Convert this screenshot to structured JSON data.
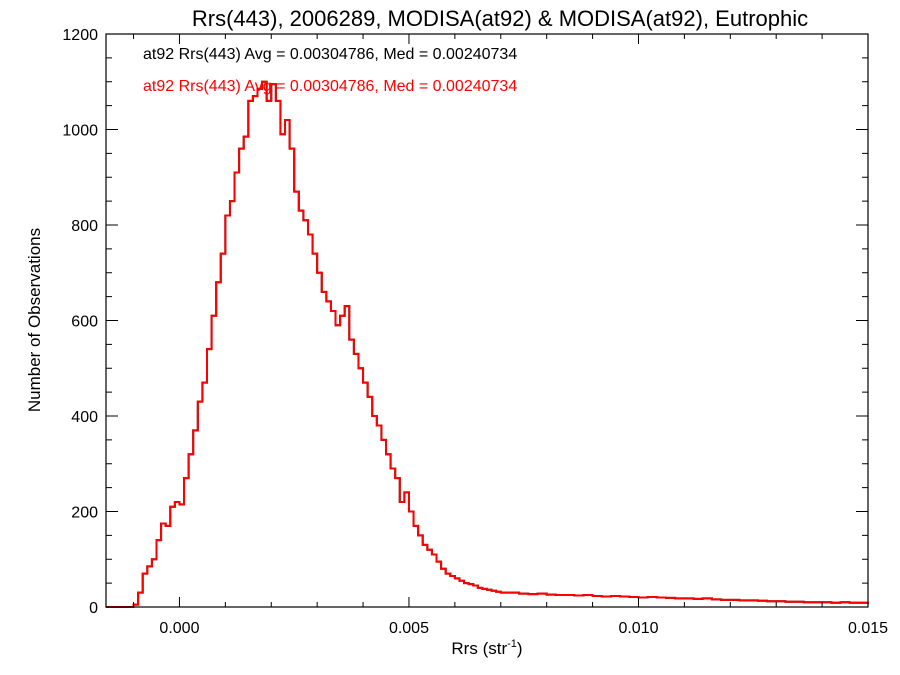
{
  "chart_data": {
    "type": "line",
    "title": "Rrs(443), 2006289, MODISA(at92) & MODISA(at92), Eutrophic",
    "xlabel": "Rrs (str",
    "xlabel_sup": "-1",
    "xlabel_close": ")",
    "ylabel": "Number of Observations",
    "xlim": [
      -0.0016,
      0.015
    ],
    "ylim": [
      0,
      1200
    ],
    "x_ticks": [
      0.0,
      0.005,
      0.01,
      0.015
    ],
    "x_tick_labels": [
      "0.000",
      "0.005",
      "0.010",
      "0.015"
    ],
    "y_ticks": [
      0,
      200,
      400,
      600,
      800,
      1000,
      1200
    ],
    "y_tick_labels": [
      "0",
      "200",
      "400",
      "600",
      "800",
      "1000",
      "1200"
    ],
    "grid": false,
    "annotations": [
      {
        "text": "at92 Rrs(443) Avg = 0.00304786, Med = 0.00240734",
        "color": "#000000"
      },
      {
        "text": "at92 Rrs(443) Avg = 0.00304786, Med = 0.00240734",
        "color": "#ff0000"
      }
    ],
    "series": [
      {
        "color": "#000000",
        "x": [
          -0.0016,
          -0.0014,
          -0.0012,
          -0.001,
          -0.0009,
          -0.0008,
          -0.0007,
          -0.0006,
          -0.0005,
          -0.0004,
          -0.0003,
          -0.0002,
          -0.0001,
          0.0,
          0.0001,
          0.0002,
          0.0003,
          0.0004,
          0.0005,
          0.0006,
          0.0007,
          0.0008,
          0.0009,
          0.001,
          0.0011,
          0.0012,
          0.0013,
          0.0014,
          0.0015,
          0.0016,
          0.0017,
          0.0018,
          0.0019,
          0.002,
          0.0021,
          0.0022,
          0.0023,
          0.0024,
          0.0025,
          0.0026,
          0.0027,
          0.0028,
          0.0029,
          0.003,
          0.0031,
          0.0032,
          0.0033,
          0.0034,
          0.0035,
          0.0036,
          0.0037,
          0.0038,
          0.0039,
          0.004,
          0.0041,
          0.0042,
          0.0043,
          0.0044,
          0.0045,
          0.0046,
          0.0047,
          0.0048,
          0.0049,
          0.005,
          0.0051,
          0.0052,
          0.0053,
          0.0054,
          0.0055,
          0.0056,
          0.0057,
          0.0058,
          0.0059,
          0.006,
          0.0061,
          0.0062,
          0.0063,
          0.0064,
          0.0065,
          0.0066,
          0.0067,
          0.0068,
          0.0069,
          0.007,
          0.0072,
          0.0074,
          0.0076,
          0.0078,
          0.008,
          0.0082,
          0.0084,
          0.0086,
          0.0088,
          0.009,
          0.0092,
          0.0094,
          0.0096,
          0.0098,
          0.01,
          0.0102,
          0.0104,
          0.0106,
          0.0108,
          0.011,
          0.0112,
          0.0114,
          0.0116,
          0.0118,
          0.012,
          0.0122,
          0.0124,
          0.0126,
          0.0128,
          0.013,
          0.0132,
          0.0134,
          0.0136,
          0.0138,
          0.014,
          0.0142,
          0.0144,
          0.0146,
          0.0148,
          0.015
        ],
        "y": [
          0,
          0,
          0,
          5,
          30,
          70,
          85,
          100,
          140,
          175,
          170,
          210,
          220,
          215,
          270,
          320,
          370,
          430,
          470,
          540,
          610,
          680,
          740,
          820,
          850,
          910,
          960,
          985,
          1060,
          1070,
          1085,
          1100,
          1060,
          1095,
          1060,
          990,
          1020,
          960,
          870,
          830,
          810,
          780,
          740,
          700,
          660,
          640,
          620,
          590,
          610,
          630,
          560,
          530,
          500,
          470,
          440,
          400,
          380,
          350,
          320,
          290,
          270,
          220,
          240,
          200,
          170,
          150,
          130,
          120,
          110,
          95,
          80,
          70,
          65,
          60,
          55,
          50,
          48,
          45,
          40,
          38,
          36,
          34,
          32,
          30,
          30,
          28,
          27,
          28,
          26,
          25,
          25,
          24,
          25,
          23,
          22,
          23,
          22,
          21,
          20,
          21,
          20,
          19,
          18,
          18,
          17,
          18,
          16,
          15,
          15,
          14,
          14,
          13,
          12,
          12,
          11,
          11,
          10,
          10,
          10,
          9,
          10,
          9,
          9,
          10
        ]
      },
      {
        "color": "#ff0000",
        "x": [
          -0.0016,
          -0.0014,
          -0.0012,
          -0.001,
          -0.0009,
          -0.0008,
          -0.0007,
          -0.0006,
          -0.0005,
          -0.0004,
          -0.0003,
          -0.0002,
          -0.0001,
          0.0,
          0.0001,
          0.0002,
          0.0003,
          0.0004,
          0.0005,
          0.0006,
          0.0007,
          0.0008,
          0.0009,
          0.001,
          0.0011,
          0.0012,
          0.0013,
          0.0014,
          0.0015,
          0.0016,
          0.0017,
          0.0018,
          0.0019,
          0.002,
          0.0021,
          0.0022,
          0.0023,
          0.0024,
          0.0025,
          0.0026,
          0.0027,
          0.0028,
          0.0029,
          0.003,
          0.0031,
          0.0032,
          0.0033,
          0.0034,
          0.0035,
          0.0036,
          0.0037,
          0.0038,
          0.0039,
          0.004,
          0.0041,
          0.0042,
          0.0043,
          0.0044,
          0.0045,
          0.0046,
          0.0047,
          0.0048,
          0.0049,
          0.005,
          0.0051,
          0.0052,
          0.0053,
          0.0054,
          0.0055,
          0.0056,
          0.0057,
          0.0058,
          0.0059,
          0.006,
          0.0061,
          0.0062,
          0.0063,
          0.0064,
          0.0065,
          0.0066,
          0.0067,
          0.0068,
          0.0069,
          0.007,
          0.0072,
          0.0074,
          0.0076,
          0.0078,
          0.008,
          0.0082,
          0.0084,
          0.0086,
          0.0088,
          0.009,
          0.0092,
          0.0094,
          0.0096,
          0.0098,
          0.01,
          0.0102,
          0.0104,
          0.0106,
          0.0108,
          0.011,
          0.0112,
          0.0114,
          0.0116,
          0.0118,
          0.012,
          0.0122,
          0.0124,
          0.0126,
          0.0128,
          0.013,
          0.0132,
          0.0134,
          0.0136,
          0.0138,
          0.014,
          0.0142,
          0.0144,
          0.0146,
          0.0148,
          0.015
        ],
        "y": [
          0,
          0,
          0,
          5,
          30,
          70,
          85,
          100,
          140,
          175,
          170,
          210,
          220,
          215,
          270,
          320,
          370,
          430,
          470,
          540,
          610,
          680,
          740,
          820,
          850,
          910,
          960,
          985,
          1060,
          1070,
          1085,
          1100,
          1060,
          1095,
          1060,
          990,
          1020,
          960,
          870,
          830,
          810,
          780,
          740,
          700,
          660,
          640,
          620,
          590,
          610,
          630,
          560,
          530,
          500,
          470,
          440,
          400,
          380,
          350,
          320,
          290,
          270,
          220,
          240,
          200,
          170,
          150,
          130,
          120,
          110,
          95,
          80,
          70,
          65,
          60,
          55,
          50,
          48,
          45,
          40,
          38,
          36,
          34,
          32,
          30,
          30,
          28,
          27,
          28,
          26,
          25,
          25,
          24,
          25,
          23,
          22,
          23,
          22,
          21,
          20,
          21,
          20,
          19,
          18,
          18,
          17,
          18,
          16,
          15,
          15,
          14,
          14,
          13,
          12,
          12,
          11,
          11,
          10,
          10,
          10,
          9,
          10,
          9,
          9,
          10
        ]
      }
    ]
  }
}
